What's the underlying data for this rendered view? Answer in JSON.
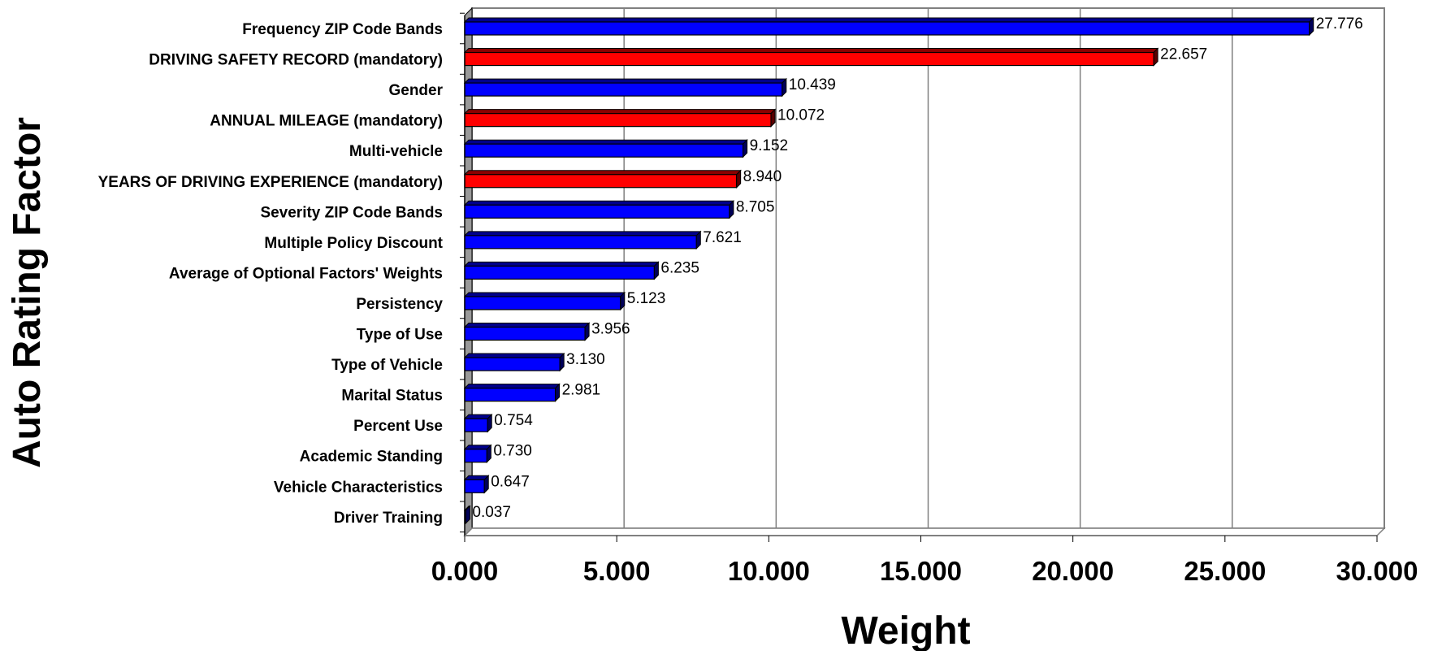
{
  "chart_data": {
    "type": "bar",
    "orientation": "horizontal",
    "title": "",
    "xlabel": "Weight",
    "ylabel": "Auto Rating Factor",
    "xlim": [
      0,
      30
    ],
    "x_ticks": [
      "0.000",
      "5.000",
      "10.000",
      "15.000",
      "20.000",
      "25.000",
      "30.000"
    ],
    "grid": "vertical",
    "legend": "none",
    "colors": {
      "optional": "#0000ff",
      "mandatory": "#ff0000",
      "wall": "#999999"
    },
    "bars": [
      {
        "category": "Frequency ZIP Code Bands",
        "value": 27.776,
        "label": "27.776",
        "group": "optional"
      },
      {
        "category": "DRIVING SAFETY RECORD (mandatory)",
        "value": 22.657,
        "label": "22.657",
        "group": "mandatory"
      },
      {
        "category": "Gender",
        "value": 10.439,
        "label": "10.439",
        "group": "optional"
      },
      {
        "category": "ANNUAL MILEAGE (mandatory)",
        "value": 10.072,
        "label": "10.072",
        "group": "mandatory"
      },
      {
        "category": "Multi-vehicle",
        "value": 9.152,
        "label": "9.152",
        "group": "optional"
      },
      {
        "category": "YEARS OF DRIVING EXPERIENCE (mandatory)",
        "value": 8.94,
        "label": "8.940",
        "group": "mandatory"
      },
      {
        "category": "Severity ZIP Code Bands",
        "value": 8.705,
        "label": "8.705",
        "group": "optional"
      },
      {
        "category": "Multiple Policy Discount",
        "value": 7.621,
        "label": "7.621",
        "group": "optional"
      },
      {
        "category": "Average of Optional Factors' Weights",
        "value": 6.235,
        "label": "6.235",
        "group": "optional"
      },
      {
        "category": "Persistency",
        "value": 5.123,
        "label": "5.123",
        "group": "optional"
      },
      {
        "category": "Type of Use",
        "value": 3.956,
        "label": "3.956",
        "group": "optional"
      },
      {
        "category": "Type of Vehicle",
        "value": 3.13,
        "label": "3.130",
        "group": "optional"
      },
      {
        "category": "Marital Status",
        "value": 2.981,
        "label": "2.981",
        "group": "optional"
      },
      {
        "category": "Percent Use",
        "value": 0.754,
        "label": "0.754",
        "group": "optional"
      },
      {
        "category": "Academic Standing",
        "value": 0.73,
        "label": "0.730",
        "group": "optional"
      },
      {
        "category": "Vehicle Characteristics",
        "value": 0.647,
        "label": "0.647",
        "group": "optional"
      },
      {
        "category": "Driver Training",
        "value": 0.037,
        "label": "0.037",
        "group": "optional"
      }
    ]
  }
}
